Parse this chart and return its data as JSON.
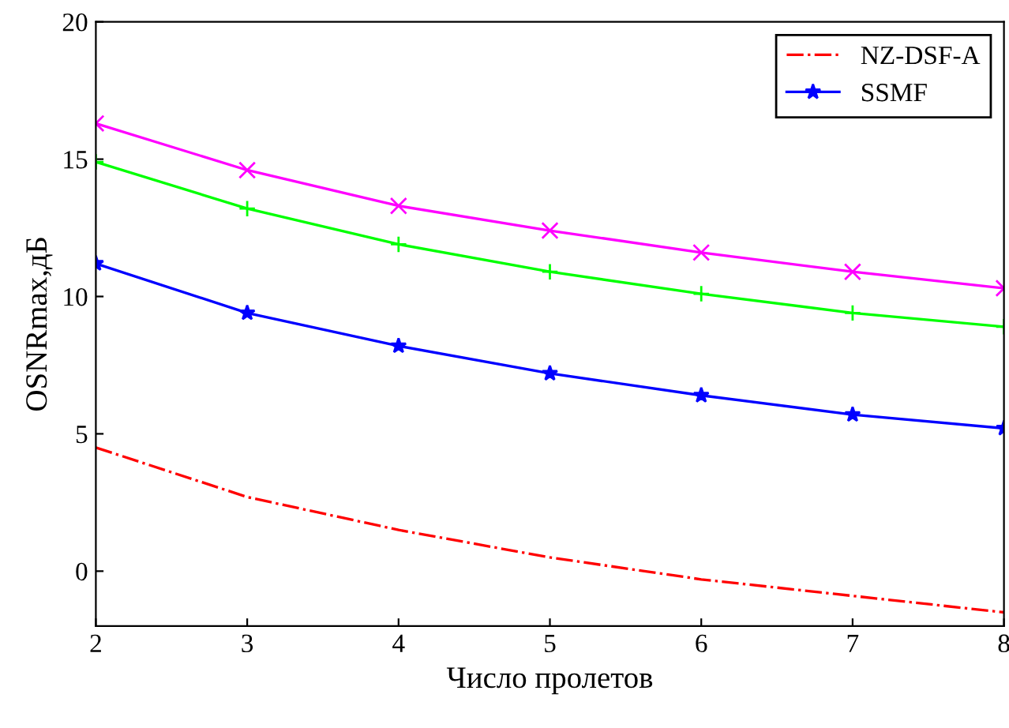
{
  "chart_data": {
    "type": "line",
    "xlabel": "Число пролетов",
    "ylabel": "OSNRmax,дБ",
    "x": [
      2,
      3,
      4,
      5,
      6,
      7,
      8
    ],
    "series": [
      {
        "name": "NZ-DSF-A",
        "color": "#ff0000",
        "values": [
          4.5,
          2.7,
          1.5,
          0.5,
          -0.3,
          -0.9,
          -1.5
        ],
        "line_style": "dashdot",
        "marker": "none"
      },
      {
        "name": "SSMF",
        "color": "#0000ff",
        "values": [
          11.2,
          9.4,
          8.2,
          7.2,
          6.4,
          5.7,
          5.2
        ],
        "marker": "star"
      },
      {
        "color": "#00ff00",
        "values": [
          14.9,
          13.2,
          11.9,
          10.9,
          10.1,
          9.4,
          8.9
        ],
        "marker": "plus"
      },
      {
        "color": "#ff00ff",
        "values": [
          16.3,
          14.6,
          13.3,
          12.4,
          11.6,
          10.9,
          10.3
        ],
        "marker": "cross"
      }
    ],
    "xlim": [
      2,
      8
    ],
    "xticks": [
      2,
      3,
      4,
      5,
      6,
      7,
      8
    ],
    "ylim": [
      -2,
      20
    ],
    "yticks": [
      0,
      5,
      10,
      15,
      20
    ],
    "grid": false,
    "legend": "top right"
  }
}
